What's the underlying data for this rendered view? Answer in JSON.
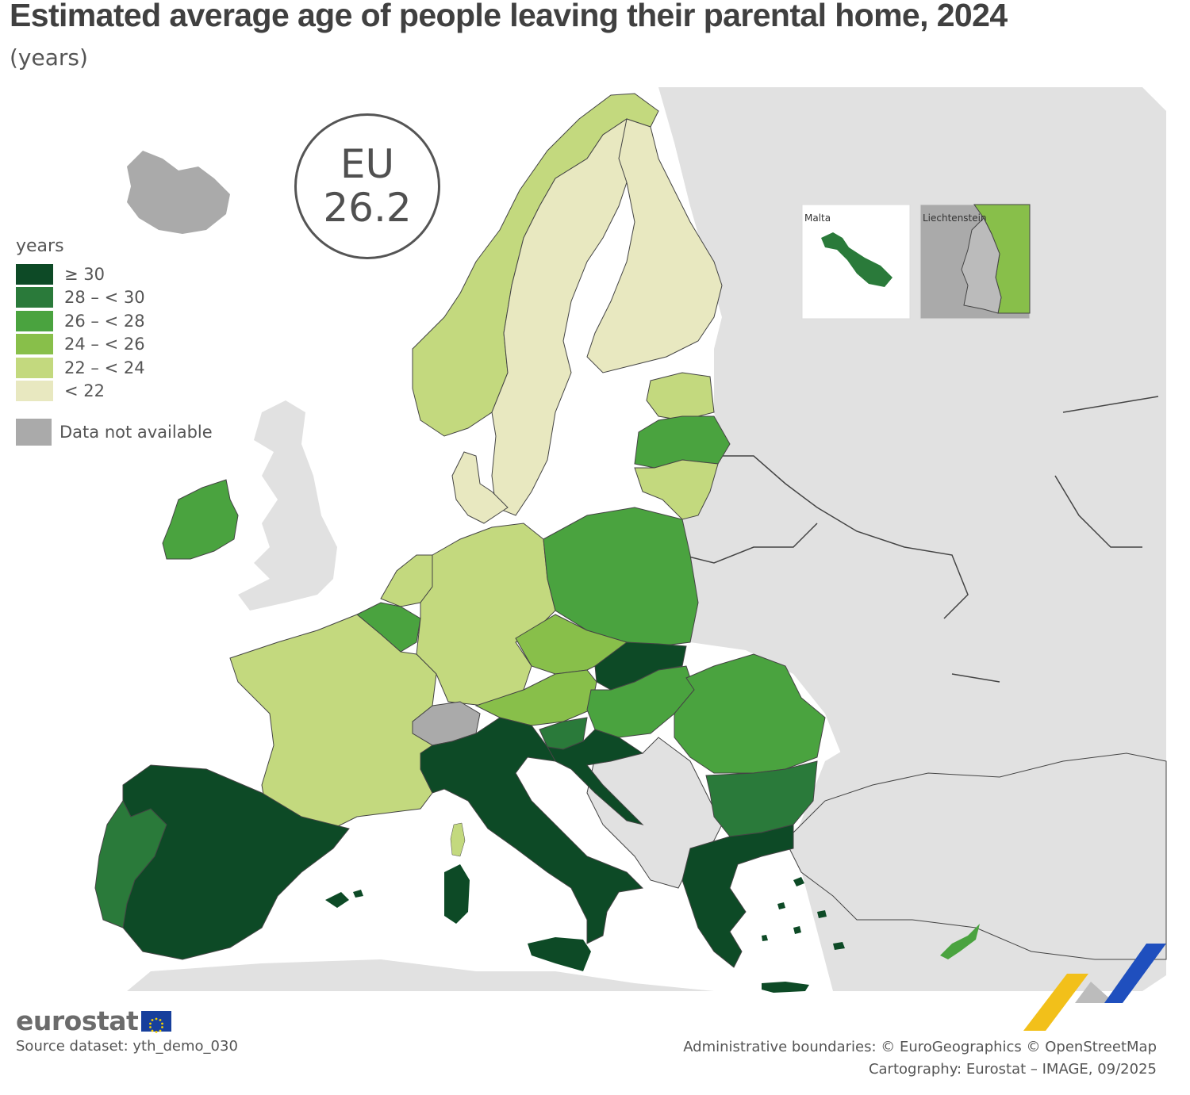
{
  "title": "Estimated average age of people leaving their parental home, 2024",
  "subtitle": "(years)",
  "eu_badge": {
    "label": "EU",
    "value": "26.2"
  },
  "legend": {
    "title": "years",
    "classes": [
      {
        "label": "≥ 30",
        "color": "#0d4a26"
      },
      {
        "label": "28 – < 30",
        "color": "#2a7a3a"
      },
      {
        "label": "26 – < 28",
        "color": "#4aa33f"
      },
      {
        "label": "24 – < 26",
        "color": "#88bf4a"
      },
      {
        "label": "22 – < 24",
        "color": "#c3d97e"
      },
      {
        "label": "< 22",
        "color": "#e8e8c0"
      }
    ],
    "not_available": {
      "label": "Data not available",
      "color": "#aaaaaa"
    }
  },
  "colors": {
    "background_land": "#e1e1e1",
    "sea": "#ffffff",
    "border": "#444444"
  },
  "insets": {
    "malta": "Malta",
    "liechtenstein": "Liechtenstein"
  },
  "logo": {
    "text": "eurostat"
  },
  "source": "Source dataset: yth_demo_030",
  "credits": {
    "boundaries": "Administrative boundaries: © EuroGeographics © OpenStreetMap",
    "cartography": "Cartography: Eurostat – IMAGE, 09/2025"
  },
  "countries": [
    {
      "name": "Spain",
      "class": "≥ 30"
    },
    {
      "name": "Italy",
      "class": "≥ 30"
    },
    {
      "name": "Slovakia",
      "class": "≥ 30"
    },
    {
      "name": "Croatia",
      "class": "≥ 30"
    },
    {
      "name": "Greece",
      "class": "≥ 30"
    },
    {
      "name": "Portugal",
      "class": "28 – < 30"
    },
    {
      "name": "Slovenia",
      "class": "28 – < 30"
    },
    {
      "name": "Bulgaria",
      "class": "28 – < 30"
    },
    {
      "name": "Malta",
      "class": "28 – < 30"
    },
    {
      "name": "Ireland",
      "class": "26 – < 28"
    },
    {
      "name": "Belgium",
      "class": "26 – < 28"
    },
    {
      "name": "Poland",
      "class": "26 – < 28"
    },
    {
      "name": "Latvia",
      "class": "26 – < 28"
    },
    {
      "name": "Hungary",
      "class": "26 – < 28"
    },
    {
      "name": "Romania",
      "class": "26 – < 28"
    },
    {
      "name": "Cyprus",
      "class": "26 – < 28"
    },
    {
      "name": "Czechia",
      "class": "24 – < 26"
    },
    {
      "name": "Austria",
      "class": "24 – < 26"
    },
    {
      "name": "Liechtenstein",
      "class": "24 – < 26"
    },
    {
      "name": "Norway",
      "class": "22 – < 24"
    },
    {
      "name": "France",
      "class": "22 – < 24"
    },
    {
      "name": "Germany",
      "class": "22 – < 24"
    },
    {
      "name": "Netherlands",
      "class": "22 – < 24"
    },
    {
      "name": "Lithuania",
      "class": "22 – < 24"
    },
    {
      "name": "Estonia",
      "class": "22 – < 24"
    },
    {
      "name": "Luxembourg",
      "class": "22 – < 24"
    },
    {
      "name": "Sweden",
      "class": "< 22"
    },
    {
      "name": "Finland",
      "class": "< 22"
    },
    {
      "name": "Denmark",
      "class": "< 22"
    },
    {
      "name": "Switzerland",
      "class": "Data not available"
    },
    {
      "name": "Iceland",
      "class": "Data not available"
    }
  ]
}
